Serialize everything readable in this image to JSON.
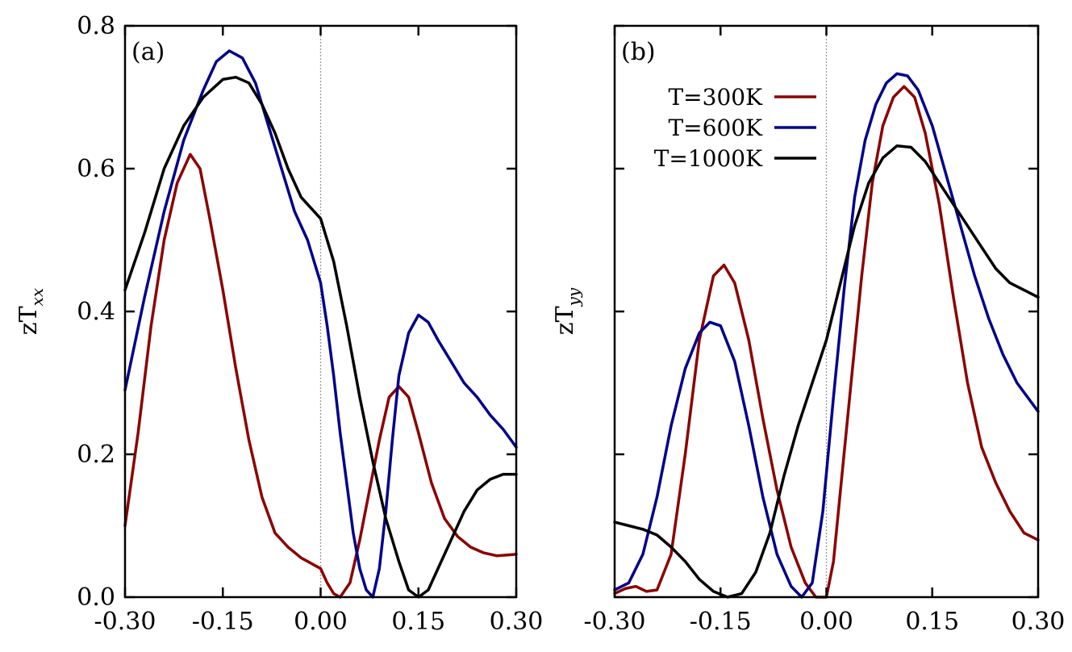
{
  "colors": {
    "T300": "#8b0000",
    "T600": "#00008b",
    "T1000": "#000000",
    "zero_line": "#999999"
  },
  "chart_data": [
    {
      "type": "line",
      "panel_label": "(a)",
      "ylabel_main": "zT",
      "ylabel_sub": "xx",
      "xlim": [
        -0.3,
        0.3
      ],
      "ylim": [
        0.0,
        0.8
      ],
      "x_ticks": [
        "-0.30",
        "-0.15",
        "0.00",
        "0.15",
        "0.30"
      ],
      "x_tick_values": [
        -0.3,
        -0.15,
        0.0,
        0.15,
        0.3
      ],
      "y_ticks": [
        "0.0",
        "0.2",
        "0.4",
        "0.6",
        "0.8"
      ],
      "y_tick_values": [
        0.0,
        0.2,
        0.4,
        0.6,
        0.8
      ],
      "show_y_tick_labels": true,
      "series": [
        {
          "name": "T=300K",
          "color_key": "T300",
          "points": [
            [
              -0.3,
              0.1
            ],
            [
              -0.28,
              0.23
            ],
            [
              -0.26,
              0.38
            ],
            [
              -0.24,
              0.5
            ],
            [
              -0.22,
              0.58
            ],
            [
              -0.2,
              0.62
            ],
            [
              -0.185,
              0.6
            ],
            [
              -0.17,
              0.53
            ],
            [
              -0.15,
              0.43
            ],
            [
              -0.13,
              0.32
            ],
            [
              -0.11,
              0.22
            ],
            [
              -0.09,
              0.14
            ],
            [
              -0.07,
              0.09
            ],
            [
              -0.05,
              0.07
            ],
            [
              -0.03,
              0.055
            ],
            [
              -0.01,
              0.045
            ],
            [
              0.0,
              0.04
            ],
            [
              0.01,
              0.02
            ],
            [
              0.02,
              0.005
            ],
            [
              0.03,
              0.0
            ],
            [
              0.045,
              0.02
            ],
            [
              0.06,
              0.08
            ],
            [
              0.075,
              0.15
            ],
            [
              0.09,
              0.22
            ],
            [
              0.105,
              0.28
            ],
            [
              0.12,
              0.295
            ],
            [
              0.135,
              0.28
            ],
            [
              0.15,
              0.23
            ],
            [
              0.17,
              0.16
            ],
            [
              0.19,
              0.11
            ],
            [
              0.21,
              0.085
            ],
            [
              0.23,
              0.07
            ],
            [
              0.25,
              0.062
            ],
            [
              0.27,
              0.058
            ],
            [
              0.3,
              0.06
            ]
          ]
        },
        {
          "name": "T=600K",
          "color_key": "T600",
          "points": [
            [
              -0.3,
              0.29
            ],
            [
              -0.27,
              0.42
            ],
            [
              -0.24,
              0.54
            ],
            [
              -0.21,
              0.64
            ],
            [
              -0.18,
              0.71
            ],
            [
              -0.16,
              0.75
            ],
            [
              -0.14,
              0.765
            ],
            [
              -0.12,
              0.755
            ],
            [
              -0.1,
              0.72
            ],
            [
              -0.08,
              0.66
            ],
            [
              -0.06,
              0.6
            ],
            [
              -0.04,
              0.54
            ],
            [
              -0.02,
              0.5
            ],
            [
              -0.01,
              0.47
            ],
            [
              0.0,
              0.44
            ],
            [
              0.01,
              0.38
            ],
            [
              0.02,
              0.31
            ],
            [
              0.03,
              0.23
            ],
            [
              0.04,
              0.16
            ],
            [
              0.05,
              0.09
            ],
            [
              0.06,
              0.04
            ],
            [
              0.07,
              0.01
            ],
            [
              0.08,
              0.0
            ],
            [
              0.09,
              0.04
            ],
            [
              0.1,
              0.12
            ],
            [
              0.11,
              0.22
            ],
            [
              0.12,
              0.31
            ],
            [
              0.135,
              0.37
            ],
            [
              0.15,
              0.395
            ],
            [
              0.165,
              0.385
            ],
            [
              0.18,
              0.36
            ],
            [
              0.2,
              0.33
            ],
            [
              0.22,
              0.3
            ],
            [
              0.24,
              0.28
            ],
            [
              0.26,
              0.255
            ],
            [
              0.28,
              0.235
            ],
            [
              0.3,
              0.21
            ]
          ]
        },
        {
          "name": "T=1000K",
          "color_key": "T1000",
          "points": [
            [
              -0.3,
              0.43
            ],
            [
              -0.27,
              0.51
            ],
            [
              -0.24,
              0.6
            ],
            [
              -0.21,
              0.66
            ],
            [
              -0.18,
              0.7
            ],
            [
              -0.15,
              0.725
            ],
            [
              -0.13,
              0.728
            ],
            [
              -0.11,
              0.72
            ],
            [
              -0.09,
              0.69
            ],
            [
              -0.07,
              0.65
            ],
            [
              -0.05,
              0.6
            ],
            [
              -0.03,
              0.56
            ],
            [
              -0.01,
              0.54
            ],
            [
              0.0,
              0.53
            ],
            [
              0.02,
              0.47
            ],
            [
              0.04,
              0.38
            ],
            [
              0.06,
              0.28
            ],
            [
              0.08,
              0.19
            ],
            [
              0.1,
              0.11
            ],
            [
              0.12,
              0.05
            ],
            [
              0.135,
              0.01
            ],
            [
              0.15,
              0.0
            ],
            [
              0.165,
              0.01
            ],
            [
              0.18,
              0.04
            ],
            [
              0.2,
              0.08
            ],
            [
              0.22,
              0.12
            ],
            [
              0.24,
              0.15
            ],
            [
              0.26,
              0.165
            ],
            [
              0.28,
              0.172
            ],
            [
              0.3,
              0.172
            ]
          ]
        }
      ]
    },
    {
      "type": "line",
      "panel_label": "(b)",
      "ylabel_main": "zT",
      "ylabel_sub": "yy",
      "xlim": [
        -0.3,
        0.3
      ],
      "ylim": [
        0.0,
        0.8
      ],
      "x_ticks": [
        "-0.30",
        "-0.15",
        "0.00",
        "0.15",
        "0.30"
      ],
      "x_tick_values": [
        -0.3,
        -0.15,
        0.0,
        0.15,
        0.3
      ],
      "y_ticks": [
        "",
        "",
        "",
        "",
        ""
      ],
      "y_tick_values": [
        0.0,
        0.2,
        0.4,
        0.6,
        0.8
      ],
      "show_y_tick_labels": false,
      "legend": {
        "placement": "top-left",
        "entries": [
          {
            "label": "T=300K",
            "color_key": "T300"
          },
          {
            "label": "T=600K",
            "color_key": "T600"
          },
          {
            "label": "T=1000K",
            "color_key": "T1000"
          }
        ]
      },
      "series": [
        {
          "name": "T=300K",
          "color_key": "T300",
          "points": [
            [
              -0.3,
              0.005
            ],
            [
              -0.285,
              0.012
            ],
            [
              -0.27,
              0.015
            ],
            [
              -0.255,
              0.008
            ],
            [
              -0.24,
              0.01
            ],
            [
              -0.22,
              0.06
            ],
            [
              -0.2,
              0.2
            ],
            [
              -0.18,
              0.36
            ],
            [
              -0.16,
              0.45
            ],
            [
              -0.145,
              0.465
            ],
            [
              -0.13,
              0.44
            ],
            [
              -0.11,
              0.36
            ],
            [
              -0.09,
              0.25
            ],
            [
              -0.07,
              0.15
            ],
            [
              -0.05,
              0.07
            ],
            [
              -0.03,
              0.02
            ],
            [
              -0.015,
              0.0
            ],
            [
              0.0,
              0.0
            ],
            [
              0.01,
              0.05
            ],
            [
              0.02,
              0.15
            ],
            [
              0.035,
              0.3
            ],
            [
              0.05,
              0.45
            ],
            [
              0.065,
              0.58
            ],
            [
              0.08,
              0.66
            ],
            [
              0.095,
              0.7
            ],
            [
              0.11,
              0.715
            ],
            [
              0.125,
              0.7
            ],
            [
              0.14,
              0.65
            ],
            [
              0.16,
              0.55
            ],
            [
              0.18,
              0.42
            ],
            [
              0.2,
              0.3
            ],
            [
              0.22,
              0.21
            ],
            [
              0.24,
              0.16
            ],
            [
              0.26,
              0.12
            ],
            [
              0.28,
              0.09
            ],
            [
              0.3,
              0.08
            ]
          ]
        },
        {
          "name": "T=600K",
          "color_key": "T600",
          "points": [
            [
              -0.3,
              0.01
            ],
            [
              -0.28,
              0.02
            ],
            [
              -0.26,
              0.06
            ],
            [
              -0.24,
              0.14
            ],
            [
              -0.22,
              0.24
            ],
            [
              -0.2,
              0.32
            ],
            [
              -0.18,
              0.37
            ],
            [
              -0.165,
              0.385
            ],
            [
              -0.15,
              0.38
            ],
            [
              -0.13,
              0.33
            ],
            [
              -0.11,
              0.24
            ],
            [
              -0.09,
              0.14
            ],
            [
              -0.07,
              0.06
            ],
            [
              -0.05,
              0.015
            ],
            [
              -0.035,
              0.0
            ],
            [
              -0.02,
              0.02
            ],
            [
              -0.005,
              0.12
            ],
            [
              0.01,
              0.28
            ],
            [
              0.025,
              0.43
            ],
            [
              0.04,
              0.56
            ],
            [
              0.055,
              0.64
            ],
            [
              0.07,
              0.69
            ],
            [
              0.085,
              0.72
            ],
            [
              0.1,
              0.733
            ],
            [
              0.115,
              0.73
            ],
            [
              0.13,
              0.71
            ],
            [
              0.15,
              0.66
            ],
            [
              0.17,
              0.59
            ],
            [
              0.19,
              0.52
            ],
            [
              0.21,
              0.45
            ],
            [
              0.23,
              0.39
            ],
            [
              0.25,
              0.34
            ],
            [
              0.27,
              0.3
            ],
            [
              0.3,
              0.26
            ]
          ]
        },
        {
          "name": "T=1000K",
          "color_key": "T1000",
          "points": [
            [
              -0.3,
              0.105
            ],
            [
              -0.28,
              0.1
            ],
            [
              -0.26,
              0.095
            ],
            [
              -0.24,
              0.087
            ],
            [
              -0.22,
              0.07
            ],
            [
              -0.2,
              0.05
            ],
            [
              -0.18,
              0.025
            ],
            [
              -0.16,
              0.008
            ],
            [
              -0.14,
              0.0
            ],
            [
              -0.12,
              0.005
            ],
            [
              -0.1,
              0.035
            ],
            [
              -0.08,
              0.09
            ],
            [
              -0.06,
              0.17
            ],
            [
              -0.04,
              0.24
            ],
            [
              -0.02,
              0.3
            ],
            [
              0.0,
              0.36
            ],
            [
              0.02,
              0.44
            ],
            [
              0.04,
              0.52
            ],
            [
              0.06,
              0.58
            ],
            [
              0.08,
              0.615
            ],
            [
              0.1,
              0.632
            ],
            [
              0.12,
              0.63
            ],
            [
              0.14,
              0.61
            ],
            [
              0.16,
              0.58
            ],
            [
              0.18,
              0.55
            ],
            [
              0.2,
              0.52
            ],
            [
              0.22,
              0.49
            ],
            [
              0.24,
              0.46
            ],
            [
              0.26,
              0.44
            ],
            [
              0.28,
              0.43
            ],
            [
              0.3,
              0.42
            ]
          ]
        }
      ]
    }
  ]
}
